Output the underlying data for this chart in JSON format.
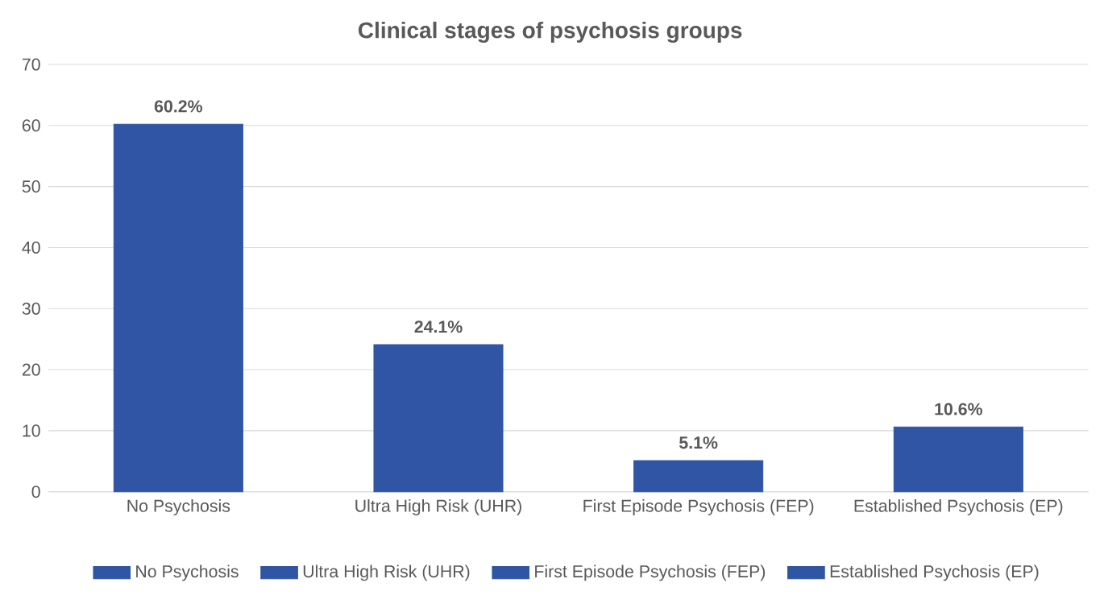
{
  "chart_data": {
    "type": "bar",
    "title": "Clinical stages of psychosis groups",
    "categories": [
      "No Psychosis",
      "Ultra High Risk (UHR)",
      "First Episode Psychosis (FEP)",
      "Established Psychosis (EP)"
    ],
    "series": [
      {
        "name": "No Psychosis",
        "color": "#2f55a4",
        "values": [
          60.2,
          null,
          null,
          null
        ],
        "value_labels": [
          "60.2%",
          null,
          null,
          null
        ]
      },
      {
        "name": "Ultra High Risk (UHR)",
        "color": "#2f55a4",
        "values": [
          null,
          24.1,
          null,
          null
        ],
        "value_labels": [
          null,
          "24.1%",
          null,
          null
        ]
      },
      {
        "name": "First Episode Psychosis (FEP)",
        "color": "#2f55a4",
        "values": [
          null,
          null,
          5.1,
          null
        ],
        "value_labels": [
          null,
          null,
          "5.1%",
          null
        ]
      },
      {
        "name": "Established Psychosis (EP)",
        "color": "#2f55a4",
        "values": [
          null,
          null,
          null,
          10.6
        ],
        "value_labels": [
          null,
          null,
          null,
          "10.6%"
        ]
      }
    ],
    "ylim": [
      0,
      70
    ],
    "yticks": [
      0,
      10,
      20,
      30,
      40,
      50,
      60,
      70
    ],
    "grid": "y",
    "legend": "bottom"
  }
}
